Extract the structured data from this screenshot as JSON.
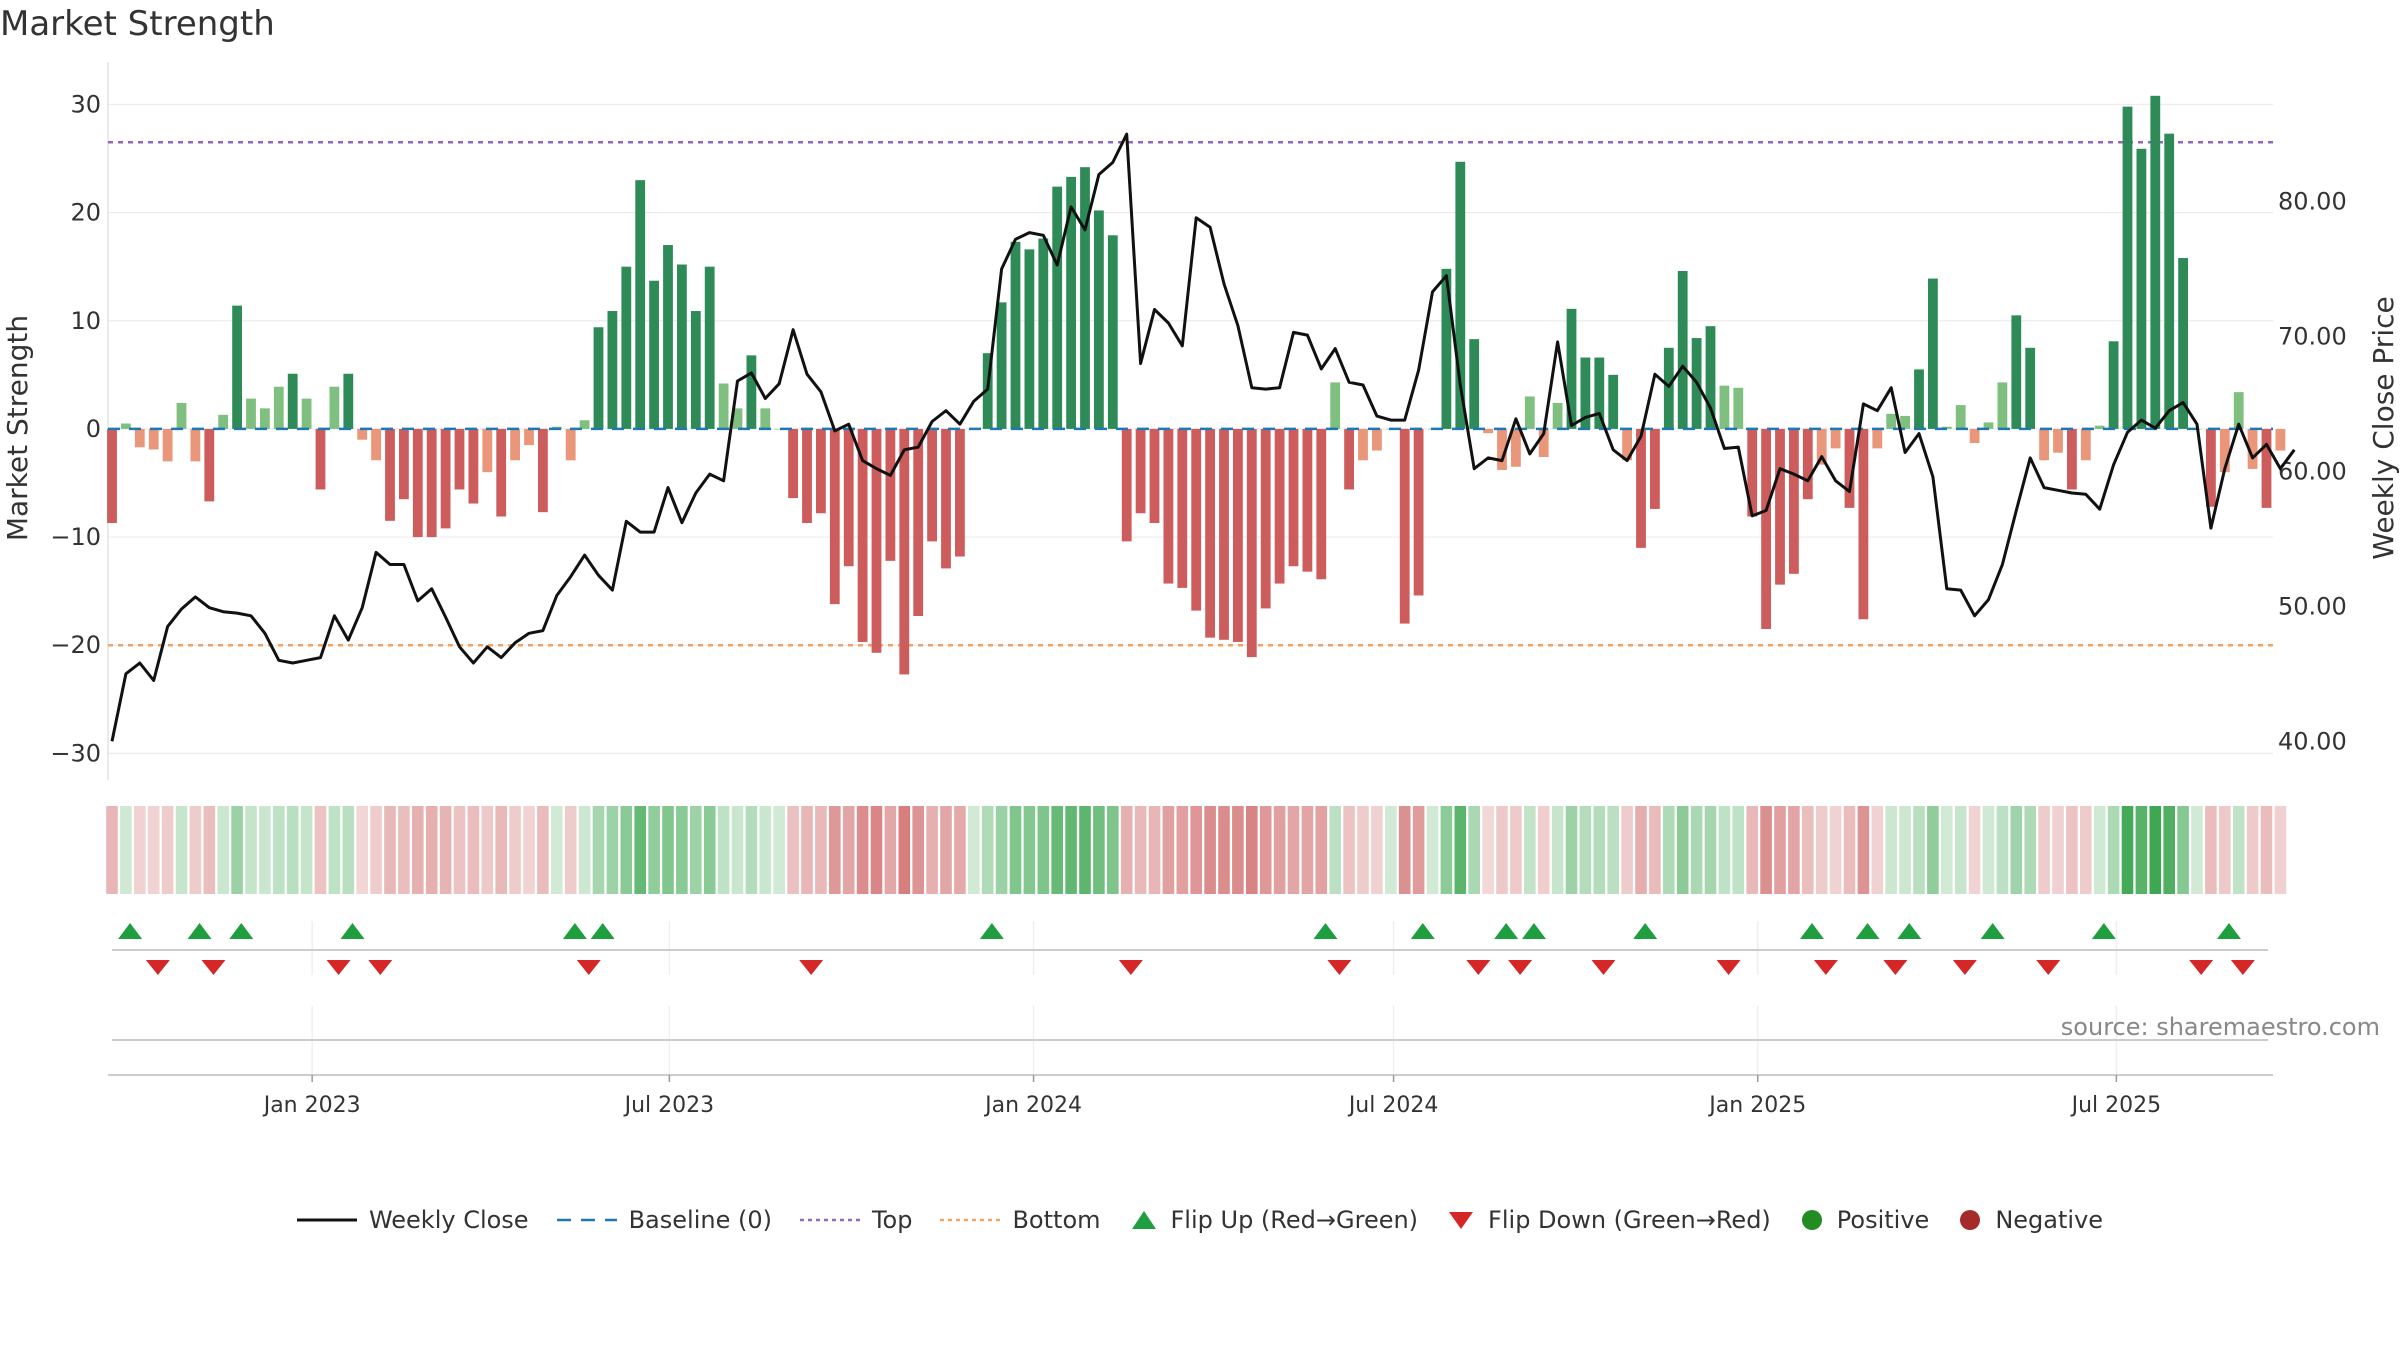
{
  "title": "Market Strength",
  "source": "source: sharemaestro.com",
  "colors": {
    "strong_green": "#2e8b57",
    "light_green": "#7fbf7f",
    "strong_red": "#cd5c5c",
    "light_red": "#e9967a",
    "line": "#111111",
    "baseline": "#1f77b4",
    "top": "#9467bd",
    "bottom": "#f4a460",
    "flip_up": "#1e9e3e",
    "flip_down": "#d62728",
    "positive": "#228b22",
    "negative": "#a52a2a"
  },
  "legend": {
    "weekly_close": "Weekly Close",
    "baseline": "Baseline (0)",
    "top": "Top",
    "bottom": "Bottom",
    "flip_up": "Flip Up (Red→Green)",
    "flip_down": "Flip Down (Green→Red)",
    "positive": "Positive",
    "negative": "Negative"
  },
  "chart_data": {
    "type": "bar",
    "title": "Market Strength",
    "ylabel": "Market Strength",
    "y2label": "Weekly Close Price",
    "ylim": [
      -32,
      33
    ],
    "y2lim": [
      37.5,
      89.6
    ],
    "yticks": [
      "−30",
      "−20",
      "−10",
      "0",
      "10",
      "20",
      "30"
    ],
    "y2ticks": [
      "40.00",
      "50.00",
      "60.00",
      "70.00",
      "80.00"
    ],
    "reference_lines": {
      "baseline": 0,
      "top": 26.5,
      "bottom": -20
    },
    "x_dates": [
      "Jan 2023",
      "Jul 2023",
      "Jan 2024",
      "Jul 2024",
      "Jan 2025",
      "Jul 2025"
    ],
    "x_date_week_index": [
      14.4,
      40.1,
      66.3,
      92.2,
      118.4,
      144.2
    ],
    "strength": [
      -8.7,
      0.5,
      -1.7,
      -1.9,
      -3.0,
      2.4,
      -3.0,
      -6.7,
      1.3,
      11.4,
      2.8,
      1.9,
      3.9,
      5.1,
      2.8,
      -5.6,
      3.9,
      5.1,
      -1.0,
      -2.9,
      -8.5,
      -6.5,
      -10.0,
      -10.0,
      -9.2,
      -5.6,
      -6.9,
      -4.0,
      -8.1,
      -2.9,
      -1.5,
      -7.7,
      0.2,
      -2.9,
      0.8,
      9.4,
      10.9,
      15.0,
      23.0,
      13.7,
      17.0,
      15.2,
      10.9,
      15.0,
      4.2,
      1.9,
      6.8,
      1.9,
      0.0,
      -6.4,
      -8.7,
      -7.8,
      -16.2,
      -12.7,
      -19.7,
      -20.7,
      -12.2,
      -22.7,
      -17.3,
      -10.4,
      -12.9,
      -11.8,
      0.0,
      7.0,
      11.7,
      17.3,
      16.6,
      17.6,
      22.4,
      23.3,
      24.2,
      20.2,
      17.9,
      -10.4,
      -7.8,
      -8.7,
      -14.3,
      -14.7,
      -16.8,
      -19.3,
      -19.5,
      -19.7,
      -21.1,
      -16.6,
      -14.3,
      -12.7,
      -13.2,
      -13.9,
      4.3,
      -5.6,
      -2.9,
      -2.0,
      0.0,
      -18.0,
      -15.4,
      0.0,
      14.8,
      24.7,
      8.3,
      -0.4,
      -3.8,
      -3.5,
      3.0,
      -2.6,
      2.4,
      11.1,
      6.6,
      6.6,
      5.0,
      -2.9,
      -11.0,
      -7.4,
      7.5,
      14.6,
      8.4,
      9.5,
      4.0,
      3.8,
      -8.1,
      -18.5,
      -14.4,
      -13.4,
      -6.5,
      -3.3,
      -1.8,
      -7.3,
      -17.6,
      -1.8,
      1.4,
      1.2,
      5.5,
      13.9,
      0.2,
      2.2,
      -1.3,
      0.6,
      4.3,
      10.5,
      7.5,
      -2.9,
      -2.2,
      -5.6,
      -2.9,
      0.3,
      8.1,
      29.8,
      25.9,
      30.8,
      27.3,
      15.8,
      0.0,
      -7.2,
      -4.0,
      3.4,
      -3.7,
      -7.3,
      -2.0
    ],
    "weekly_close": [
      40.0,
      45.0,
      45.8,
      44.5,
      48.5,
      49.8,
      50.7,
      49.9,
      49.6,
      49.5,
      49.3,
      48.0,
      46.0,
      45.8,
      46.0,
      46.2,
      49.3,
      47.5,
      49.9,
      54.0,
      53.1,
      53.1,
      50.4,
      51.3,
      49.2,
      47.0,
      45.8,
      47.0,
      46.2,
      47.3,
      48.0,
      48.2,
      50.8,
      52.2,
      53.8,
      52.3,
      51.2,
      56.3,
      55.5,
      55.5,
      58.8,
      56.2,
      58.4,
      59.8,
      59.3,
      66.7,
      67.3,
      65.4,
      66.5,
      70.5,
      67.2,
      65.9,
      63.0,
      63.5,
      60.8,
      60.2,
      59.7,
      61.6,
      61.8,
      63.7,
      64.5,
      63.5,
      65.2,
      66.1,
      75.0,
      77.2,
      77.7,
      77.5,
      75.3,
      79.6,
      77.9,
      82.0,
      82.9,
      85.0,
      68.0,
      72.0,
      71.0,
      69.3,
      78.8,
      78.1,
      73.9,
      70.8,
      66.2,
      66.1,
      66.2,
      70.3,
      70.1,
      67.6,
      69.1,
      66.6,
      66.4,
      64.1,
      63.8,
      63.8,
      67.5,
      73.3,
      74.5,
      66.4,
      60.2,
      61.0,
      60.8,
      63.9,
      61.3,
      62.8,
      69.6,
      63.4,
      64.0,
      64.3,
      61.6,
      60.8,
      62.6,
      67.2,
      66.3,
      67.8,
      66.6,
      64.7,
      61.7,
      61.8,
      56.7,
      57.1,
      60.2,
      59.8,
      59.3,
      61.1,
      59.3,
      58.5,
      65.0,
      64.5,
      66.2,
      61.4,
      62.8,
      59.6,
      51.3,
      51.2,
      49.3,
      50.5,
      53.1,
      57.1,
      61.0,
      58.8,
      58.6,
      58.4,
      58.3,
      57.2,
      60.5,
      62.9,
      63.8,
      63.2,
      64.5,
      65.1,
      63.5,
      55.8,
      60.2,
      63.5,
      61.0,
      62.0,
      60.2,
      61.6
    ],
    "flip_up_weeks": [
      1.3,
      6.3,
      9.3,
      17.3,
      33.3,
      35.3,
      63.3,
      87.3,
      94.3,
      100.3,
      102.3,
      110.3,
      122.3,
      126.3,
      129.3,
      135.3,
      143.3,
      152.3
    ],
    "flip_down_weeks": [
      3.3,
      7.3,
      16.3,
      19.3,
      34.3,
      50.3,
      73.3,
      88.3,
      98.3,
      101.3,
      107.3,
      116.3,
      123.3,
      128.3,
      133.3,
      139.3,
      150.3,
      153.3
    ]
  }
}
